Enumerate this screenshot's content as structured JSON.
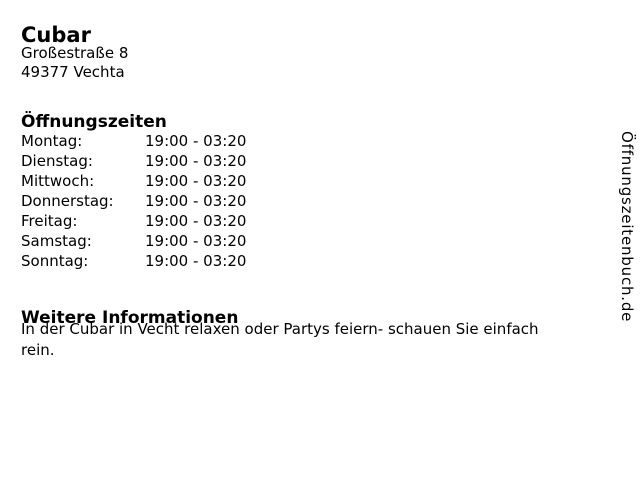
{
  "page": {
    "background": "#ffffff",
    "text_color": "#000000"
  },
  "business": {
    "name": "Cubar",
    "street": "Großestraße 8",
    "city": "49377 Vechta"
  },
  "opening_hours": {
    "heading": "Öffnungszeiten",
    "rows": [
      {
        "day": "Montag:",
        "time": "19:00 - 03:20"
      },
      {
        "day": "Dienstag:",
        "time": "19:00 - 03:20"
      },
      {
        "day": "Mittwoch:",
        "time": "19:00 - 03:20"
      },
      {
        "day": "Donnerstag:",
        "time": "19:00 - 03:20"
      },
      {
        "day": "Freitag:",
        "time": "19:00 - 03:20"
      },
      {
        "day": "Samstag:",
        "time": "19:00 - 03:20"
      },
      {
        "day": "Sonntag:",
        "time": "19:00 - 03:20"
      }
    ]
  },
  "additional_info": {
    "heading": "Weitere Informationen",
    "lines": [
      "In der Cubar in Vecht relaxen oder Partys feiern- schauen Sie einfach",
      "rein."
    ]
  },
  "watermark": {
    "text": "Öffnungszeitenbuch.de"
  }
}
